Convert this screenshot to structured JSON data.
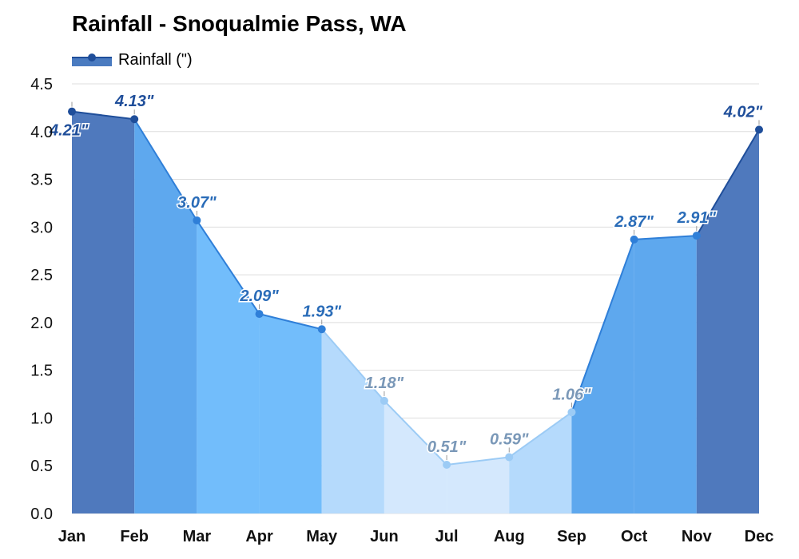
{
  "chart_data": {
    "type": "area",
    "title": "Rainfall - Snoqualmie Pass, WA",
    "categories": [
      "Jan",
      "Feb",
      "Mar",
      "Apr",
      "May",
      "Jun",
      "Jul",
      "Aug",
      "Sep",
      "Oct",
      "Nov",
      "Dec"
    ],
    "series": [
      {
        "name": "Rainfall (\")",
        "values": [
          4.21,
          4.13,
          3.07,
          2.09,
          1.93,
          1.18,
          0.51,
          0.59,
          1.06,
          2.87,
          2.91,
          4.02
        ],
        "labels": [
          "4.21\"",
          "4.13\"",
          "3.07\"",
          "2.09\"",
          "1.93\"",
          "1.18\"",
          "0.51\"",
          "0.59\"",
          "1.06\"",
          "2.87\"",
          "2.91\"",
          "4.02\""
        ]
      }
    ],
    "yticks": [
      "0.0",
      "0.5",
      "1.0",
      "1.5",
      "2.0",
      "2.5",
      "3.0",
      "3.5",
      "4.0",
      "4.5"
    ],
    "ylim": [
      0,
      4.5
    ],
    "grid": true,
    "legend_position": "top-left",
    "colors": {
      "wettest": "#4f79bd",
      "wet": "#5ea8ee",
      "moderate": "#72bdfb",
      "dry": "#b5dafc",
      "driest": "#d4e8fd",
      "line_dark": "#1f4e9a",
      "line_mid": "#2f7fd8",
      "line_light": "#9ccbf5",
      "label_dark": "#1f4e9a",
      "label_mid": "#2a6cb8",
      "label_light": "#7a98b8",
      "grid": "#dddddd"
    },
    "month_colors": [
      "wettest",
      "wet",
      "moderate",
      "moderate",
      "dry",
      "driest",
      "driest",
      "dry",
      "wet",
      "wet",
      "wettest",
      "wettest"
    ]
  }
}
